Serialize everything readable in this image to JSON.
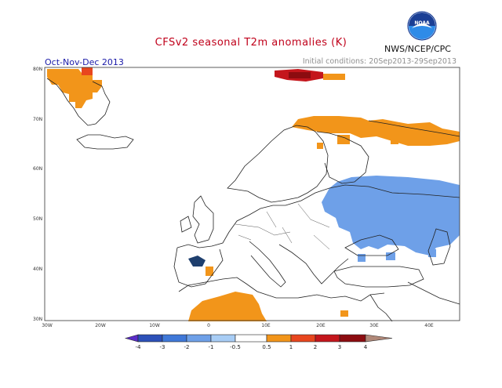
{
  "header": {
    "title": "CFSv2 seasonal T2m anomalies (K)",
    "season": "Oct-Nov-Dec 2013",
    "initial_conditions": "Initial conditions: 20Sep2013-29Sep2013",
    "agency": "NWS/NCEP/CPC",
    "logo_text": "NOAA"
  },
  "axes": {
    "lat_labels": [
      "80N",
      "70N",
      "60N",
      "50N",
      "40N",
      "30N"
    ],
    "lon_labels": [
      "30W",
      "20W",
      "10W",
      "0",
      "10E",
      "20E",
      "30E",
      "40E"
    ]
  },
  "legend": {
    "labels": [
      "-4",
      "-3",
      "-2",
      "-1",
      "-0.5",
      "0.5",
      "1",
      "2",
      "3",
      "4"
    ],
    "colors": [
      "#5a2dc8",
      "#2c50b8",
      "#3f78d8",
      "#6ea0e8",
      "#a8cdf5",
      "#ffffff",
      "#f2951a",
      "#e8461e",
      "#c4161c",
      "#8c0c10",
      "#b08878"
    ]
  },
  "regions": [
    {
      "name": "Greenland warm anomaly",
      "color": "#f2951a"
    },
    {
      "name": "Svalbard warm anomaly",
      "color": "#c4161c"
    },
    {
      "name": "Northern Scandinavia warm anomaly",
      "color": "#f2951a"
    },
    {
      "name": "Eastern Europe cool anomaly",
      "color": "#6ea0e8"
    },
    {
      "name": "North Africa warm anomaly",
      "color": "#f2951a"
    },
    {
      "name": "Iberia cold anomaly",
      "color": "#1e3f6e"
    }
  ]
}
